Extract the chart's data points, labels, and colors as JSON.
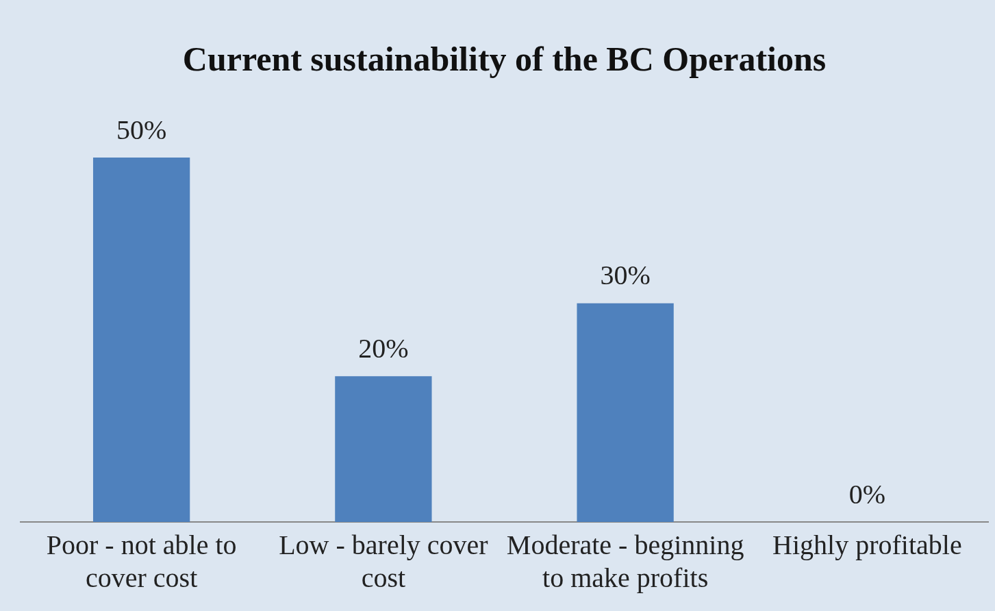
{
  "chart_data": {
    "type": "bar",
    "title": "Current sustainability of the BC Operations",
    "categories": [
      "Poor - not able to cover cost",
      "Low - barely cover cost",
      "Moderate - beginning to make profits",
      "Highly profitable"
    ],
    "values": [
      50,
      20,
      30,
      0
    ],
    "value_labels": [
      "50%",
      "20%",
      "30%",
      "0%"
    ],
    "color": "#4f81bd",
    "grid": false,
    "legend": false
  }
}
